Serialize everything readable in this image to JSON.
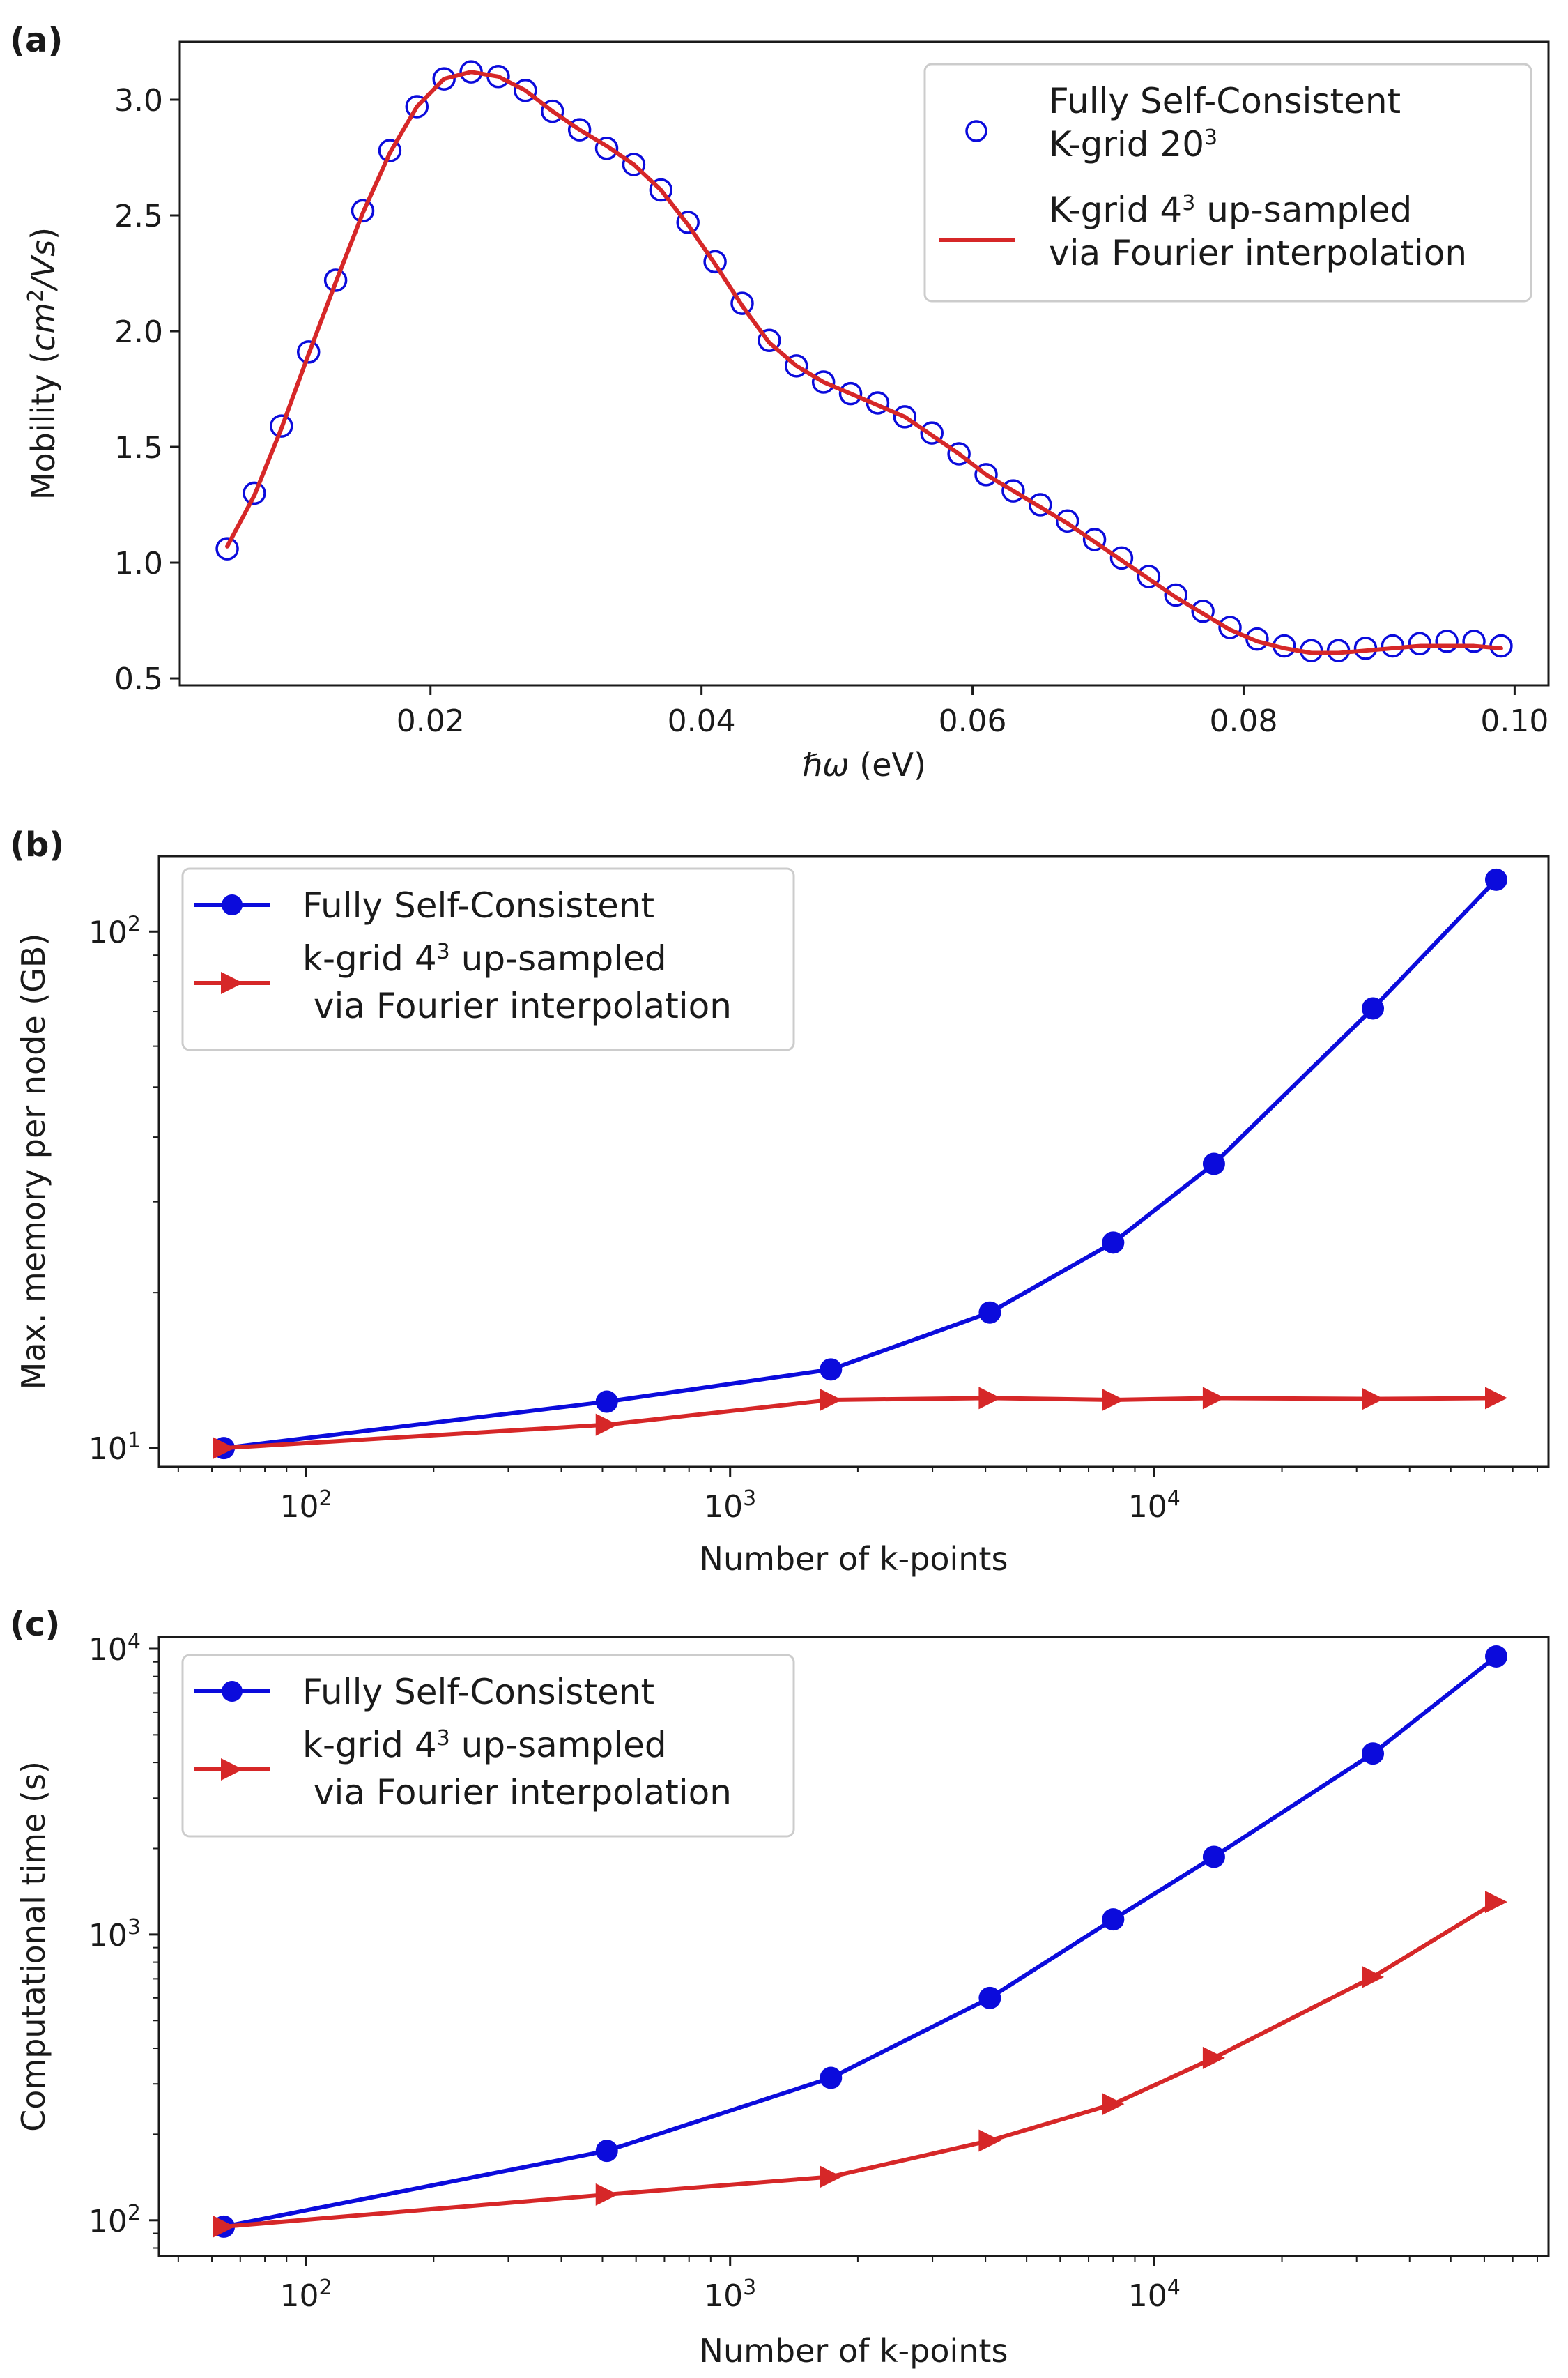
{
  "colors": {
    "blue": "#0b0bdc",
    "red": "#d62728",
    "axis": "#1a1a1a",
    "legend_border": "#cccccc"
  },
  "chart_data": [
    {
      "panel": "(a)",
      "type": "scatter+line",
      "xlabel": "ℏω (eV)",
      "ylabel": "Mobility (cm²/Vs)",
      "xlim": [
        0.0015,
        0.1025
      ],
      "ylim": [
        0.47,
        3.25
      ],
      "xticks": [
        {
          "v": 0.02,
          "label": "0.02"
        },
        {
          "v": 0.04,
          "label": "0.04"
        },
        {
          "v": 0.06,
          "label": "0.06"
        },
        {
          "v": 0.08,
          "label": "0.08"
        },
        {
          "v": 0.1,
          "label": "0.10"
        }
      ],
      "yticks": [
        {
          "v": 0.5,
          "label": "0.5"
        },
        {
          "v": 1.0,
          "label": "1.0"
        },
        {
          "v": 1.5,
          "label": "1.5"
        },
        {
          "v": 2.0,
          "label": "2.0"
        },
        {
          "v": 2.5,
          "label": "2.5"
        },
        {
          "v": 3.0,
          "label": "3.0"
        }
      ],
      "legend_position": "upper-right",
      "series": [
        {
          "name": "Fully Self-Consistent K-grid 20³",
          "legend_lines": [
            "Fully Self-Consistent",
            "K-grid 20³"
          ],
          "style": "open-circle",
          "color": "#0b0bdc",
          "x": [
            0.005,
            0.007,
            0.009,
            0.011,
            0.013,
            0.015,
            0.017,
            0.019,
            0.021,
            0.023,
            0.025,
            0.027,
            0.029,
            0.031,
            0.033,
            0.035,
            0.037,
            0.039,
            0.041,
            0.043,
            0.045,
            0.047,
            0.049,
            0.051,
            0.053,
            0.055,
            0.057,
            0.059,
            0.061,
            0.063,
            0.065,
            0.067,
            0.069,
            0.071,
            0.073,
            0.075,
            0.077,
            0.079,
            0.081,
            0.083,
            0.085,
            0.087,
            0.089,
            0.091,
            0.093,
            0.095,
            0.097,
            0.099
          ],
          "y": [
            1.06,
            1.3,
            1.59,
            1.91,
            2.22,
            2.52,
            2.78,
            2.97,
            3.09,
            3.12,
            3.1,
            3.04,
            2.95,
            2.87,
            2.79,
            2.72,
            2.61,
            2.47,
            2.3,
            2.12,
            1.96,
            1.85,
            1.78,
            1.73,
            1.69,
            1.63,
            1.56,
            1.47,
            1.38,
            1.31,
            1.25,
            1.18,
            1.1,
            1.02,
            0.94,
            0.86,
            0.79,
            0.72,
            0.67,
            0.64,
            0.62,
            0.62,
            0.63,
            0.64,
            0.65,
            0.66,
            0.66,
            0.64
          ]
        },
        {
          "name": "K-grid 4³ up-sampled via Fourier interpolation",
          "legend_lines": [
            "K-grid 4³ up-sampled",
            "via Fourier interpolation"
          ],
          "style": "line",
          "color": "#d62728",
          "x": [
            0.005,
            0.007,
            0.009,
            0.011,
            0.013,
            0.015,
            0.017,
            0.019,
            0.021,
            0.023,
            0.025,
            0.027,
            0.029,
            0.031,
            0.033,
            0.035,
            0.037,
            0.039,
            0.041,
            0.043,
            0.045,
            0.047,
            0.049,
            0.051,
            0.053,
            0.055,
            0.057,
            0.059,
            0.061,
            0.063,
            0.065,
            0.067,
            0.069,
            0.071,
            0.073,
            0.075,
            0.077,
            0.079,
            0.081,
            0.083,
            0.085,
            0.087,
            0.089,
            0.091,
            0.093,
            0.095,
            0.097,
            0.099
          ],
          "y": [
            1.07,
            1.29,
            1.58,
            1.9,
            2.21,
            2.51,
            2.77,
            2.97,
            3.09,
            3.12,
            3.1,
            3.04,
            2.95,
            2.87,
            2.8,
            2.72,
            2.61,
            2.46,
            2.29,
            2.11,
            1.95,
            1.85,
            1.78,
            1.73,
            1.68,
            1.63,
            1.55,
            1.47,
            1.38,
            1.31,
            1.24,
            1.17,
            1.09,
            1.01,
            0.93,
            0.85,
            0.78,
            0.71,
            0.66,
            0.63,
            0.61,
            0.61,
            0.62,
            0.63,
            0.64,
            0.64,
            0.64,
            0.63
          ]
        }
      ]
    },
    {
      "panel": "(b)",
      "type": "line",
      "xscale": "log",
      "yscale": "log",
      "xlabel": "Number of k-points",
      "ylabel": "Max. memory per node (GB)",
      "xlim": [
        45,
        85000
      ],
      "ylim": [
        9.2,
        140
      ],
      "xticks": [
        {
          "v": 100,
          "base": "10",
          "exp": "2"
        },
        {
          "v": 1000,
          "base": "10",
          "exp": "3"
        },
        {
          "v": 10000,
          "base": "10",
          "exp": "4"
        }
      ],
      "yticks": [
        {
          "v": 10,
          "base": "10",
          "exp": "1"
        },
        {
          "v": 100,
          "base": "10",
          "exp": "2"
        }
      ],
      "legend_position": "upper-left",
      "x": [
        64,
        512,
        1728,
        4096,
        8000,
        13824,
        32768,
        64000
      ],
      "series": [
        {
          "name": "Fully Self-Consistent",
          "legend_lines": [
            "Fully Self-Consistent"
          ],
          "marker": "circle",
          "color": "#0b0bdc",
          "values": [
            10.0,
            12.3,
            14.2,
            18.3,
            25.0,
            35.5,
            71.0,
            126.0
          ]
        },
        {
          "name": "k-grid 4³ up-sampled via Fourier interpolation",
          "legend_lines": [
            "k-grid 4³ up-sampled",
            " via Fourier interpolation"
          ],
          "marker": "triangle-right",
          "color": "#d62728",
          "values": [
            10.0,
            11.1,
            12.4,
            12.5,
            12.4,
            12.5,
            12.45,
            12.5
          ]
        }
      ]
    },
    {
      "panel": "(c)",
      "type": "line",
      "xscale": "log",
      "yscale": "log",
      "xlabel": "Number of k-points",
      "ylabel": "Computational time (s)",
      "xlim": [
        45,
        85000
      ],
      "ylim": [
        75,
        11000
      ],
      "xticks": [
        {
          "v": 100,
          "base": "10",
          "exp": "2"
        },
        {
          "v": 1000,
          "base": "10",
          "exp": "3"
        },
        {
          "v": 10000,
          "base": "10",
          "exp": "4"
        }
      ],
      "yticks": [
        {
          "v": 100,
          "base": "10",
          "exp": "2"
        },
        {
          "v": 1000,
          "base": "10",
          "exp": "3"
        },
        {
          "v": 10000,
          "base": "10",
          "exp": "4"
        }
      ],
      "legend_position": "upper-left",
      "x": [
        64,
        512,
        1728,
        4096,
        8000,
        13824,
        32768,
        64000
      ],
      "series": [
        {
          "name": "Fully Self-Consistent",
          "legend_lines": [
            "Fully Self-Consistent"
          ],
          "marker": "circle",
          "color": "#0b0bdc",
          "values": [
            95,
            175,
            315,
            600,
            1130,
            1870,
            4300,
            9400
          ]
        },
        {
          "name": "k-grid 4³ up-sampled via Fourier interpolation",
          "legend_lines": [
            "k-grid 4³ up-sampled",
            " via Fourier interpolation"
          ],
          "marker": "triangle-right",
          "color": "#d62728",
          "values": [
            95,
            123,
            142,
            190,
            255,
            370,
            710,
            1300
          ]
        }
      ]
    }
  ]
}
